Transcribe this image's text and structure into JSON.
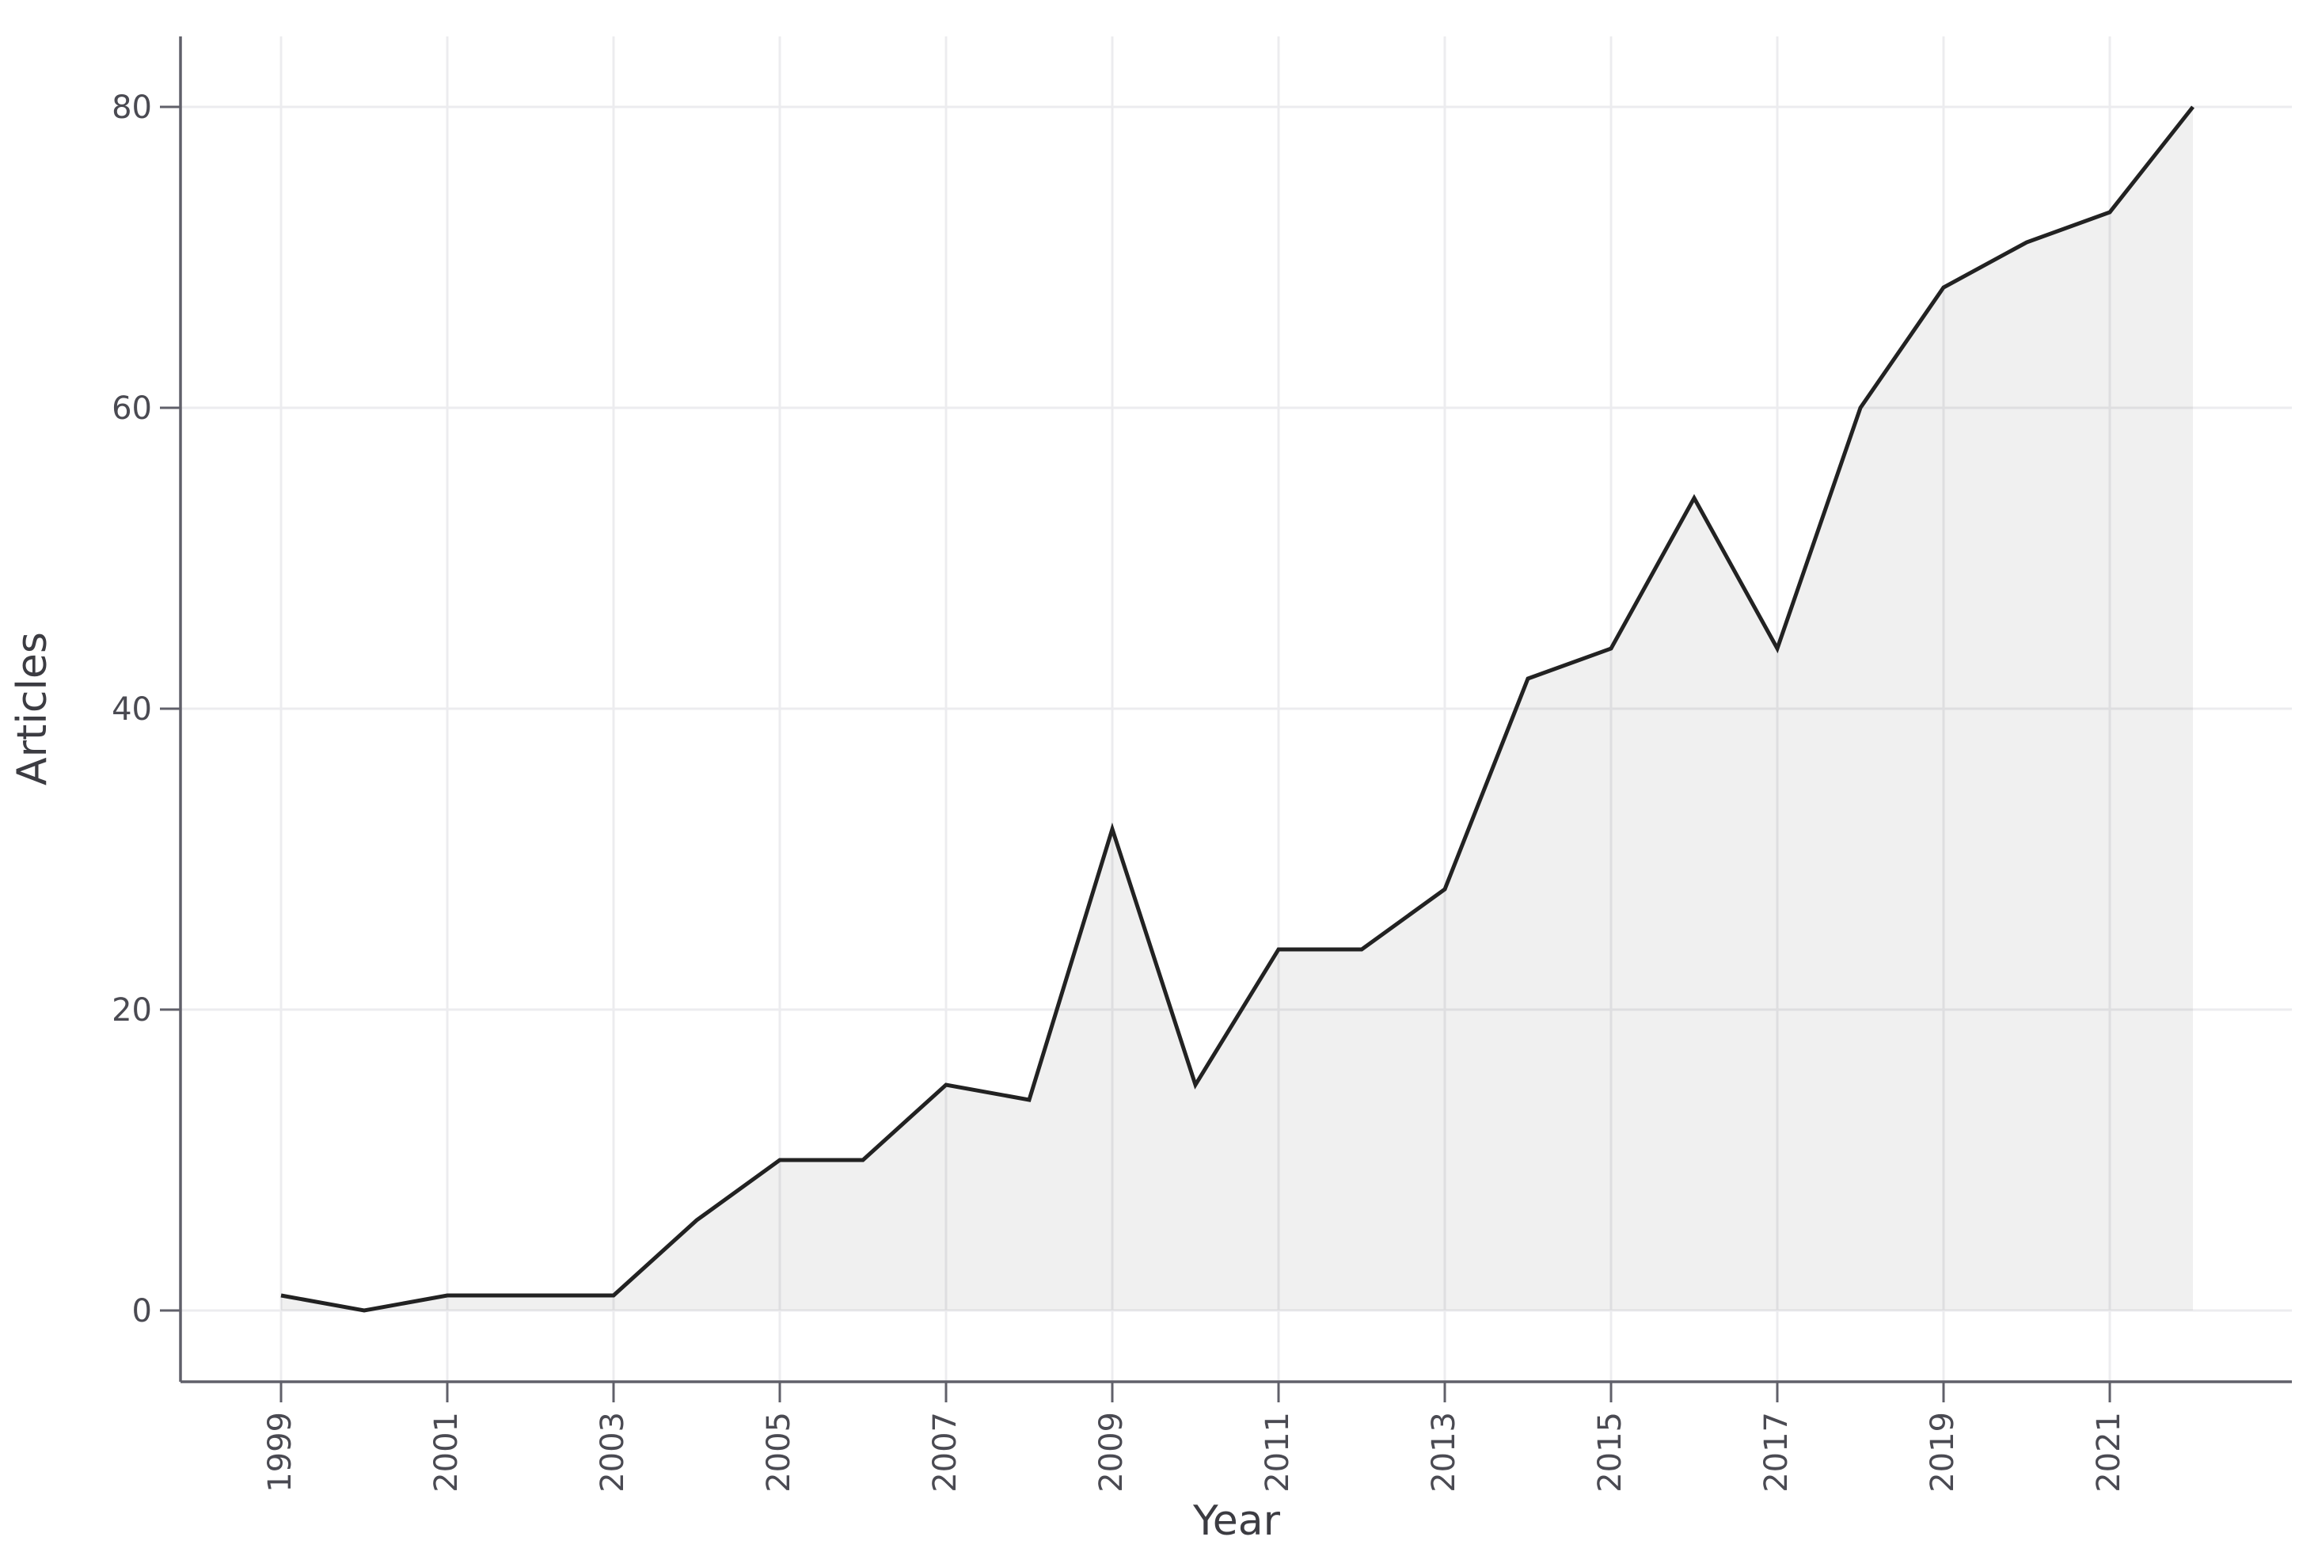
{
  "chart_data": {
    "type": "area",
    "title": "",
    "xlabel": "Year",
    "ylabel": "Articles",
    "x": [
      1999,
      2000,
      2001,
      2002,
      2003,
      2004,
      2005,
      2006,
      2007,
      2008,
      2009,
      2010,
      2011,
      2012,
      2013,
      2014,
      2015,
      2016,
      2017,
      2018,
      2019,
      2020,
      2021,
      2022
    ],
    "series": [
      {
        "name": "Articles",
        "values": [
          1,
          0,
          1,
          1,
          1,
          6,
          10,
          10,
          15,
          14,
          32,
          15,
          24,
          24,
          28,
          42,
          44,
          54,
          44,
          60,
          68,
          71,
          73,
          80
        ]
      }
    ],
    "x_tick_labels": [
      "1999",
      "2001",
      "2003",
      "2005",
      "2007",
      "2009",
      "2011",
      "2013",
      "2015",
      "2017",
      "2019",
      "2021"
    ],
    "x_ticks": [
      1999,
      2001,
      2003,
      2005,
      2007,
      2009,
      2011,
      2013,
      2015,
      2017,
      2019,
      2021
    ],
    "y_tick_labels": [
      "0",
      "20",
      "40",
      "60",
      "80"
    ],
    "y_ticks": [
      0,
      20,
      40,
      60,
      80
    ],
    "xlim": [
      1999,
      2022
    ],
    "ylim": [
      0,
      80
    ],
    "grid": "major-on",
    "legend_position": "none",
    "x_tick_label_rotation_deg": 90,
    "colors": {
      "line": "#222222",
      "area_fill": "#f0f0f0",
      "gridline": "#ececef",
      "axis": "#60606a",
      "tick_label": "#4a4a52",
      "axis_title": "#3c3c42",
      "background": "#ffffff"
    }
  }
}
